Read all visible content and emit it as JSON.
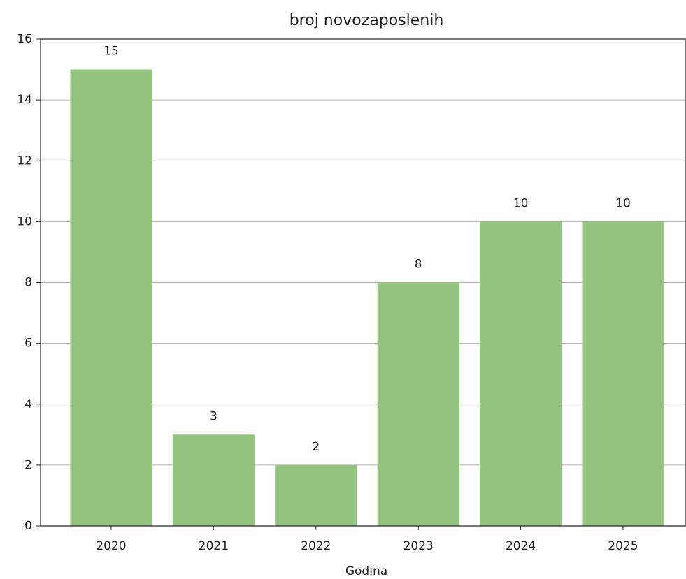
{
  "chart_data": {
    "type": "bar",
    "title": "broj novozaposlenih",
    "xlabel": "Godina",
    "categories": [
      "2020",
      "2021",
      "2022",
      "2023",
      "2024",
      "2025"
    ],
    "values": [
      15,
      3,
      2,
      8,
      10,
      10
    ],
    "color": "#93c47d",
    "ylim": [
      0,
      16
    ],
    "yticks": [
      0,
      2,
      4,
      6,
      8,
      10,
      12,
      14,
      16
    ],
    "grid": true
  }
}
